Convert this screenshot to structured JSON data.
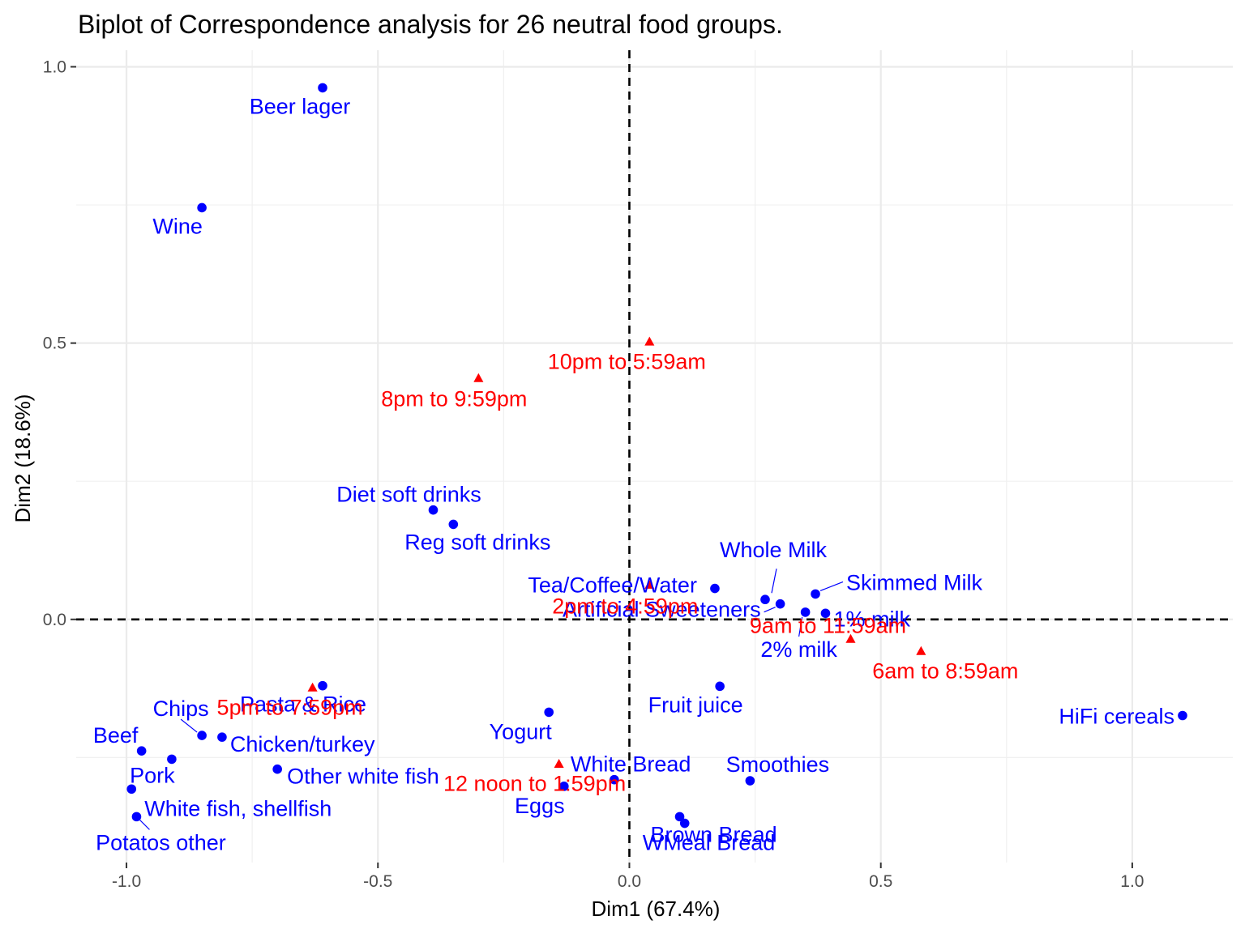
{
  "chart_data": {
    "type": "scatter",
    "title": "Biplot of Correspondence analysis for 26 neutral food groups.",
    "xlabel": "Dim1 (67.4%)",
    "ylabel": "Dim2 (18.6%)",
    "xlim": [
      -1.1,
      1.2
    ],
    "ylim": [
      -0.44,
      1.03
    ],
    "x_ticks": [
      -1.0,
      -0.5,
      0.0,
      0.5,
      1.0
    ],
    "x_tick_labels": [
      "-1.0",
      "-0.5",
      "0.0",
      "0.5",
      "1.0"
    ],
    "y_ticks": [
      0.0,
      0.5,
      1.0
    ],
    "y_tick_labels": [
      "0.0",
      "0.5",
      "1.0"
    ],
    "grid": true,
    "reference_lines": {
      "x": 0,
      "y": 0,
      "style": "dashed"
    },
    "colors": {
      "foods": "#0000ff",
      "times": "#ff0000"
    },
    "series": [
      {
        "marker": "circle",
        "color": "#0000ff",
        "points": [
          {
            "label": "Beer lager",
            "x": -0.61,
            "y": 0.962
          },
          {
            "label": "Wine",
            "x": -0.85,
            "y": 0.745
          },
          {
            "label": "Diet soft drinks",
            "x": -0.39,
            "y": 0.198
          },
          {
            "label": "Reg soft drinks",
            "x": -0.35,
            "y": 0.172
          },
          {
            "label": "Tea/Coffee/Water",
            "x": 0.17,
            "y": 0.056
          },
          {
            "label": "Whole Milk",
            "x": 0.27,
            "y": 0.036
          },
          {
            "label": "Artificial Sweeteners",
            "x": 0.3,
            "y": 0.028
          },
          {
            "label": "Skimmed Milk",
            "x": 0.37,
            "y": 0.046
          },
          {
            "label": "2% milk",
            "x": 0.35,
            "y": 0.013
          },
          {
            "label": "1% milk",
            "x": 0.39,
            "y": 0.011
          },
          {
            "label": "Fruit juice",
            "x": 0.18,
            "y": -0.121
          },
          {
            "label": "HiFi cereals",
            "x": 1.1,
            "y": -0.174
          },
          {
            "label": "Yogurt",
            "x": -0.16,
            "y": -0.168
          },
          {
            "label": "White Bread",
            "x": -0.03,
            "y": -0.29
          },
          {
            "label": "Eggs",
            "x": -0.13,
            "y": -0.302
          },
          {
            "label": "Smoothies",
            "x": 0.24,
            "y": -0.292
          },
          {
            "label": "Brown Bread",
            "x": 0.1,
            "y": -0.357
          },
          {
            "label": "WMeal Bread",
            "x": 0.11,
            "y": -0.369
          },
          {
            "label": "Pasta & Rice",
            "x": -0.61,
            "y": -0.12
          },
          {
            "label": "Chips",
            "x": -0.85,
            "y": -0.21
          },
          {
            "label": "Chicken/turkey",
            "x": -0.81,
            "y": -0.213
          },
          {
            "label": "Beef",
            "x": -0.97,
            "y": -0.238
          },
          {
            "label": "Pork",
            "x": -0.91,
            "y": -0.253
          },
          {
            "label": "Other white fish",
            "x": -0.7,
            "y": -0.271
          },
          {
            "label": "White fish, shellfish",
            "x": -0.99,
            "y": -0.307
          },
          {
            "label": "Potatos other",
            "x": -0.98,
            "y": -0.357
          }
        ]
      },
      {
        "marker": "triangle",
        "color": "#ff0000",
        "points": [
          {
            "label": "10pm to 5:59am",
            "x": 0.04,
            "y": 0.502
          },
          {
            "label": "8pm to 9:59pm",
            "x": -0.3,
            "y": 0.436
          },
          {
            "label": "2pm to 4:59pm",
            "x": 0.04,
            "y": 0.062
          },
          {
            "label": "9am to 11:59am",
            "x": 0.44,
            "y": -0.036
          },
          {
            "label": "6am to 8:59am",
            "x": 0.58,
            "y": -0.058
          },
          {
            "label": "5pm to 7:59pm",
            "x": -0.63,
            "y": -0.124
          },
          {
            "label": "12 noon to 1:59pm",
            "x": -0.14,
            "y": -0.262
          }
        ]
      }
    ]
  }
}
